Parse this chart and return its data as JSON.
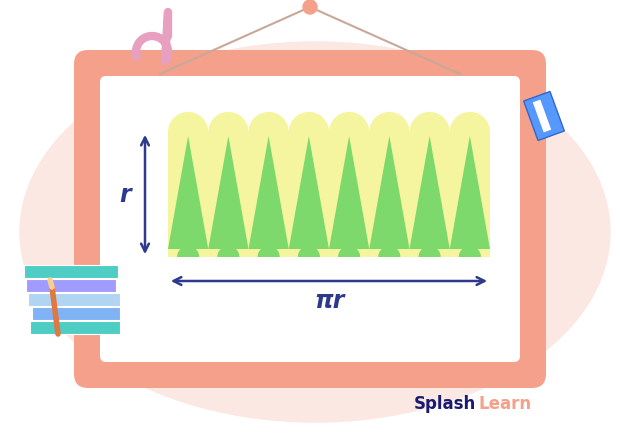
{
  "bg_color": "#ffffff",
  "n_wedges": 8,
  "yellow_color": "#f5f5a0",
  "green_color": "#7dd96b",
  "arrow_color": "#2d3a8c",
  "label_r": "r",
  "label_pi_r": "πr",
  "board_border": "#F4A08A",
  "board_inner": "#ffffff",
  "blob_color": "#fce8e2",
  "splash_dark": "#1a1a6e",
  "splash_orange": "#F4A08A",
  "hook_color": "#e8a0c0",
  "string_color": "#c8a898",
  "hanger_color": "#F4A08A"
}
